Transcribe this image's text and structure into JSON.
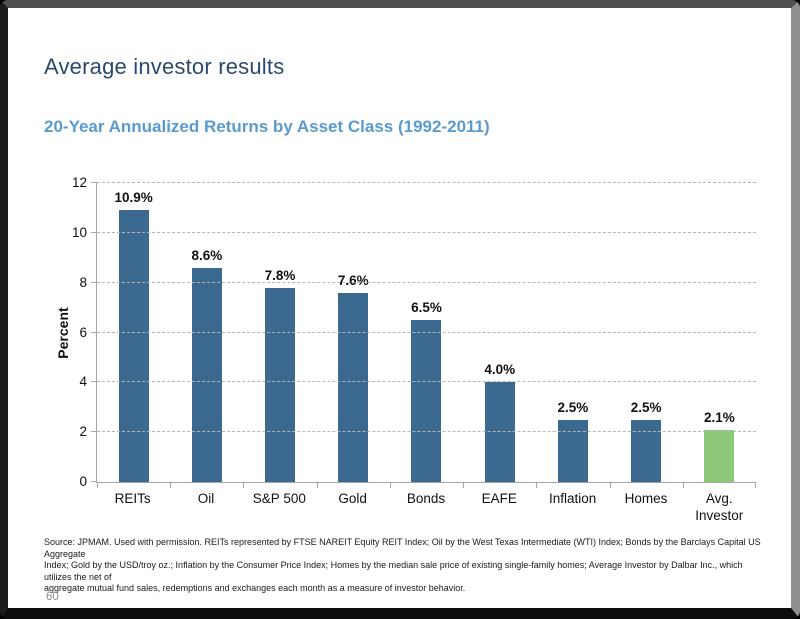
{
  "slide": {
    "title": "Average investor results"
  },
  "chart_data": {
    "type": "bar",
    "title": "20-Year Annualized Returns by Asset Class (1992-2011)",
    "categories": [
      "REITs",
      "Oil",
      "S&P 500",
      "Gold",
      "Bonds",
      "EAFE",
      "Inflation",
      "Homes",
      "Avg.\nInvestor"
    ],
    "values": [
      10.9,
      8.6,
      7.8,
      7.6,
      6.5,
      4.0,
      2.5,
      2.5,
      2.1
    ],
    "data_labels": [
      "10.9%",
      "8.6%",
      "7.8%",
      "7.6%",
      "6.5%",
      "4.0%",
      "2.5%",
      "2.5%",
      "2.1%"
    ],
    "xlabel": "",
    "ylabel": "Percent",
    "ylim": [
      0,
      12
    ],
    "yticks": [
      0,
      2,
      4,
      6,
      8,
      10,
      12
    ],
    "grid": "horizontal-dashed",
    "legend": "none",
    "bar_color_default": "#3C6990",
    "bar_color_highlight": "#8CC878",
    "highlight_index": 8
  },
  "footer": {
    "source": "Source: JPMAM. Used with permission. REITs represented by FTSE NAREIT Equity REIT Index; Oil by the West Texas Intermediate (WTI) Index; Bonds by the Barclays Capital US Aggregate\nIndex; Gold by the USD/troy oz.; Inflation by the Consumer Price Index; Homes by the median sale price of existing single-family homes; Average Investor by Dalbar Inc., which utilizes the net of\naggregate mutual fund sales, redemptions and exchanges each month as a measure of investor behavior.",
    "page_number": "60"
  }
}
